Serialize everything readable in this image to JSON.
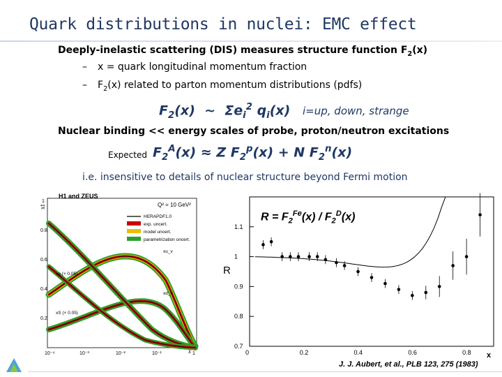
{
  "title": "Quark distributions in nuclei: EMC effect",
  "bullets": {
    "dis": "Deeply-inelastic scattering (DIS) measures structure function F2(x)",
    "x_def": "x = quark longitudinal momentum fraction",
    "f2_def": "F2(x) related to parton momentum distributions (pdfs)",
    "dash": "–"
  },
  "formula": {
    "lhs": "F2(x)",
    "sim": "~",
    "rhs": "Σei2 qi(x)",
    "note": "i=up, down, strange"
  },
  "binding": "Nuclear binding << energy scales of probe, proton/neutron excitations",
  "expected": {
    "label": "Expected",
    "equation": "F2A(x) ≈ Z F2p(x) + N F2n(x)"
  },
  "insensitive": "i.e. insensitive to details of nuclear structure beyond Fermi motion",
  "left_figure": {
    "ylabel": "xf",
    "header": "H1 and ZEUS",
    "q2": "Q² = 10 GeV²",
    "legend": [
      "HERAPDF1.0",
      "exp. uncert.",
      "model uncert.",
      "parametrization uncert."
    ],
    "curve_labels": [
      "xu_v",
      "xd_v",
      "xg (× 0.05)",
      "xS (× 0.05)"
    ],
    "xlabel": "x",
    "yticks": [
      "1",
      "0.8",
      "0.6",
      "0.4",
      "0.2"
    ],
    "xticks": [
      "10⁻⁴",
      "10⁻³",
      "10⁻²",
      "10⁻¹",
      "1"
    ],
    "colors": {
      "central": "#000000",
      "exp": "#cc0000",
      "model": "#e8c000",
      "param": "#2ca02c"
    }
  },
  "right_figure": {
    "label": "R = F2Fe(x) / F2D(x)",
    "ylabel": "R",
    "xlabel": "x",
    "yticks": [
      "1.1",
      "1",
      "0.9",
      "0.8",
      "0.7"
    ],
    "xticks": [
      "0",
      "0.2",
      "0.4",
      "0.6",
      "0.8"
    ]
  },
  "chart_data": {
    "type": "scatter",
    "title": "R = F2Fe(x) / F2D(x)",
    "xlabel": "x",
    "ylabel": "R",
    "xlim": [
      0,
      0.9
    ],
    "ylim": [
      0.7,
      1.2
    ],
    "series": [
      {
        "name": "",
        "x": [
          0.05,
          0.08,
          0.12,
          0.15,
          0.18,
          0.22,
          0.25,
          0.28,
          0.32,
          0.35,
          0.4,
          0.45,
          0.5,
          0.55,
          0.6,
          0.65,
          0.7,
          0.75,
          0.8,
          0.85
        ],
        "y": [
          1.04,
          1.05,
          1.0,
          1.0,
          1.0,
          1.0,
          1.0,
          0.99,
          0.98,
          0.97,
          0.95,
          0.93,
          0.91,
          0.89,
          0.87,
          0.88,
          0.9,
          0.97,
          1.0,
          1.14
        ]
      }
    ]
  },
  "citation": "J. J. Aubert, et al., PLB 123, 275 (1983)"
}
